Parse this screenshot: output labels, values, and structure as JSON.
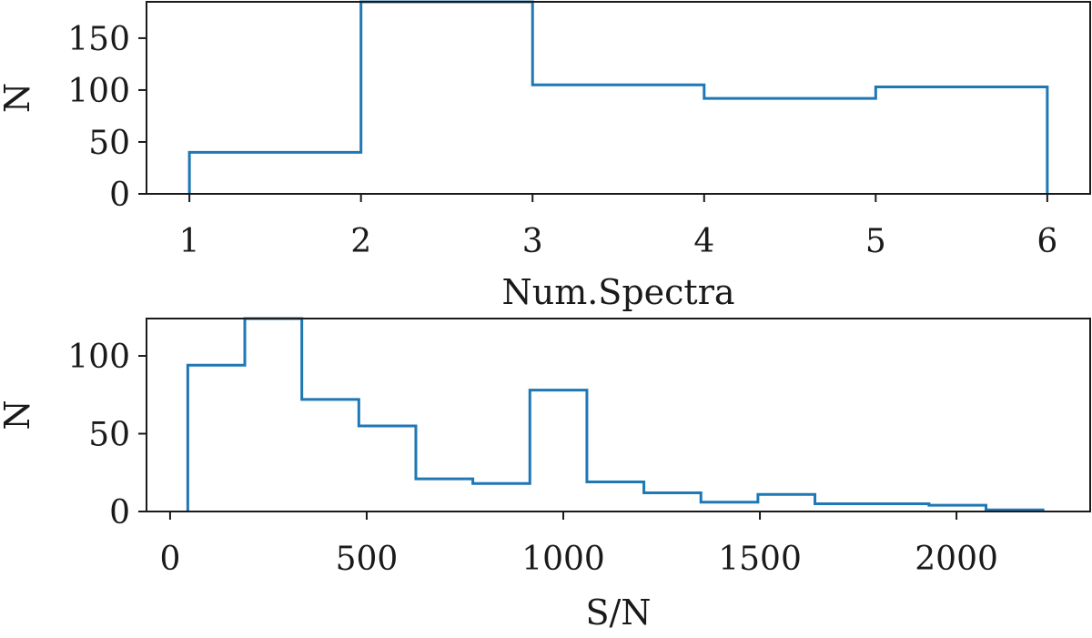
{
  "colors": {
    "series": "#1f77b4",
    "axes": "#1a1a1a"
  },
  "chart_data": [
    {
      "type": "histogram",
      "title": "",
      "xlabel": "Num.Spectra",
      "ylabel": "N",
      "xlim": [
        0.75,
        6.25
      ],
      "ylim": [
        0,
        185
      ],
      "xticks": [
        1,
        2,
        3,
        4,
        5,
        6
      ],
      "yticks": [
        0,
        50,
        100,
        150
      ],
      "grid": false,
      "bin_edges": [
        1,
        2,
        3,
        4,
        5,
        6
      ],
      "counts": [
        40,
        185,
        105,
        92,
        103
      ]
    },
    {
      "type": "histogram",
      "title": "",
      "xlabel": "S/N",
      "ylabel": "N",
      "xlim": [
        -60,
        2340
      ],
      "ylim": [
        0,
        124
      ],
      "xticks": [
        0,
        500,
        1000,
        1500,
        2000
      ],
      "yticks": [
        0,
        50,
        100
      ],
      "grid": false,
      "bin_edges": [
        45,
        190,
        335,
        480,
        625,
        770,
        915,
        1060,
        1205,
        1350,
        1495,
        1640,
        1785,
        1930,
        2075,
        2220
      ],
      "counts": [
        94,
        124,
        72,
        55,
        21,
        18,
        78,
        19,
        12,
        6,
        11,
        5,
        5,
        4,
        1
      ]
    }
  ]
}
